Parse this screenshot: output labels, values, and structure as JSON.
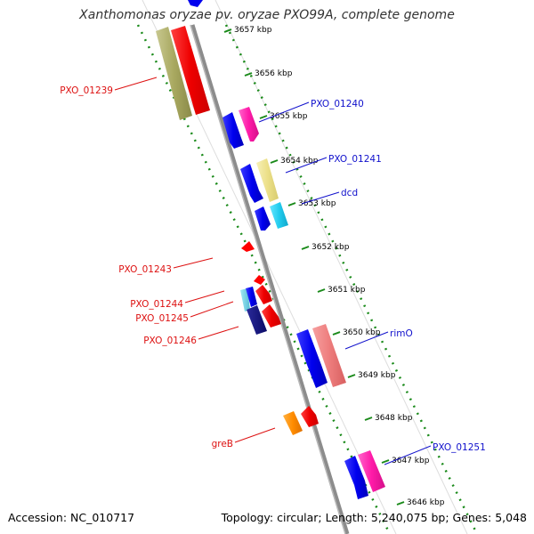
{
  "title": "Xanthomonas oryzae pv. oryzae PXO99A, complete genome",
  "accession": "Accession: NC_010717",
  "summary": "Topology: circular; Length: 5,240,075 bp; Genes: 5,048",
  "colors": {
    "backbone": "#8c8c8c",
    "tick_green": "#1a8a1a",
    "label_red": "#dd1111",
    "label_blue": "#1111cc",
    "ruler_text": "#000000"
  },
  "ruler_labels": [
    "3657 kbp",
    "3656 kbp",
    "3655 kbp",
    "3654 kbp",
    "3653 kbp",
    "3652 kbp",
    "3651 kbp",
    "3650 kbp",
    "3649 kbp",
    "3648 kbp",
    "3647 kbp",
    "3646 kbp"
  ],
  "red_labels": [
    "PXO_01239",
    "PXO_01243",
    "PXO_01244",
    "PXO_01245",
    "PXO_01246",
    "greB"
  ],
  "blue_labels": [
    "PXO_01240",
    "PXO_01241",
    "dcd",
    "rimO",
    "PXO_01251"
  ]
}
